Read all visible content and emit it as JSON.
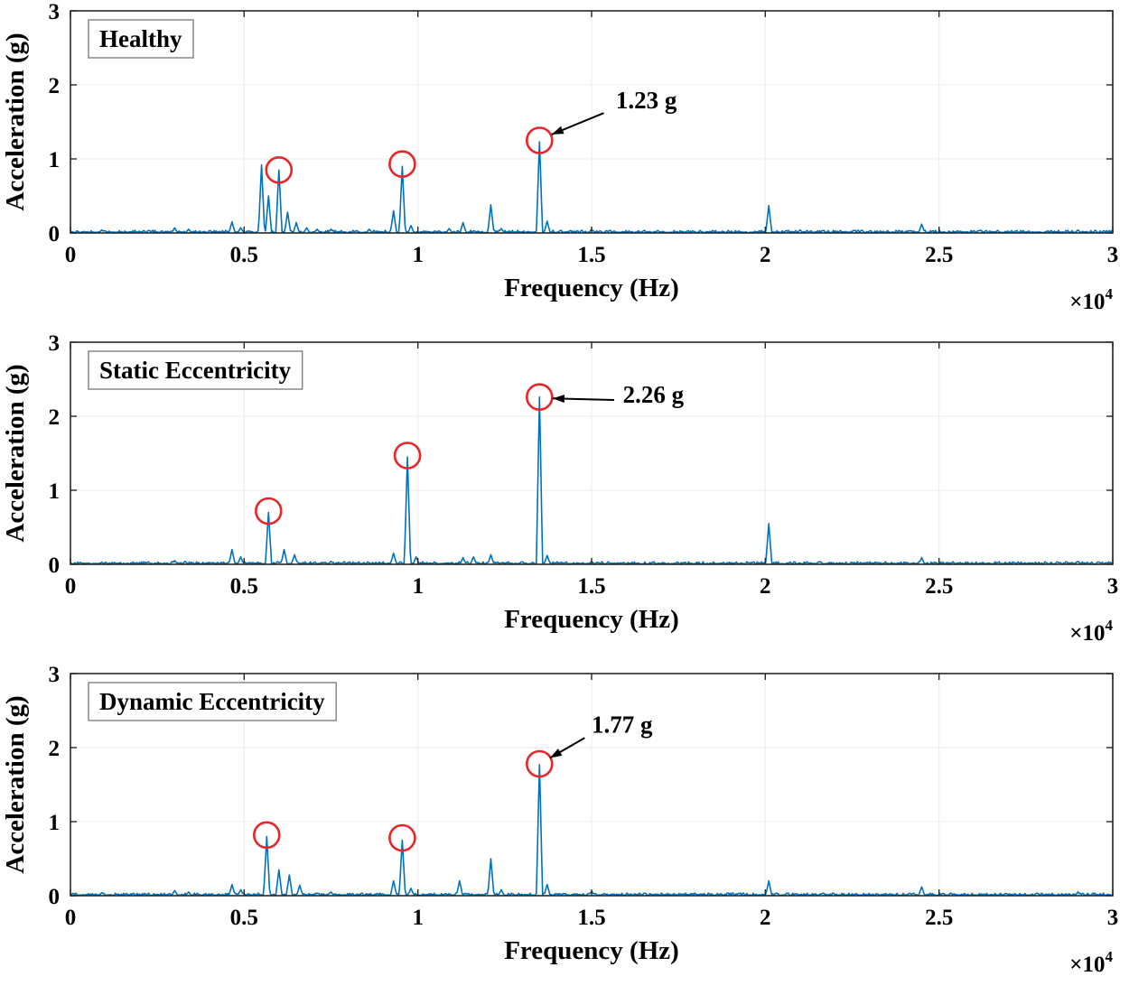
{
  "style": {
    "line_color": "#0072BD",
    "circle_color": "#E8262A",
    "axis_color": "#262626",
    "grid_color": "#ececec",
    "annotation_color": "#000000",
    "label_box_border": "#808080",
    "label_box_fill": "#ffffff",
    "background": "#ffffff"
  },
  "chart_data": [
    {
      "type": "line",
      "label": "Healthy",
      "xlabel": "Frequency (Hz)",
      "ylabel": "Acceleration (g)",
      "x_multiplier": {
        "base": "×10",
        "exponent": "4"
      },
      "xlim": [
        0,
        30000
      ],
      "ylim": [
        0,
        3
      ],
      "xticks": [
        0,
        5000,
        10000,
        15000,
        20000,
        25000,
        30000
      ],
      "xtick_labels": [
        "0",
        "0.5",
        "1",
        "1.5",
        "2",
        "2.5",
        "3"
      ],
      "yticks": [
        0,
        1,
        2,
        3
      ],
      "ytick_labels": [
        "0",
        "1",
        "2",
        "3"
      ],
      "peaks": [
        [
          900,
          0.04
        ],
        [
          3000,
          0.07
        ],
        [
          3400,
          0.05
        ],
        [
          4650,
          0.15
        ],
        [
          4900,
          0.07
        ],
        [
          5500,
          0.92
        ],
        [
          5700,
          0.5
        ],
        [
          6000,
          0.85
        ],
        [
          6250,
          0.28
        ],
        [
          6500,
          0.14
        ],
        [
          6800,
          0.07
        ],
        [
          7100,
          0.05
        ],
        [
          7500,
          0.05
        ],
        [
          8600,
          0.05
        ],
        [
          9300,
          0.3
        ],
        [
          9550,
          0.9
        ],
        [
          9800,
          0.1
        ],
        [
          10900,
          0.06
        ],
        [
          11300,
          0.14
        ],
        [
          12100,
          0.38
        ],
        [
          12400,
          0.06
        ],
        [
          13500,
          1.23
        ],
        [
          13720,
          0.16
        ],
        [
          15000,
          0.05
        ],
        [
          16500,
          0.03
        ],
        [
          20100,
          0.37
        ],
        [
          21000,
          0.04
        ],
        [
          24500,
          0.12
        ],
        [
          26000,
          0.03
        ],
        [
          29000,
          0.04
        ]
      ],
      "circled_peaks": [
        [
          6000,
          0.85
        ],
        [
          9550,
          0.93
        ],
        [
          13500,
          1.25
        ]
      ],
      "annotation": {
        "text": "1.23 g",
        "value_g": 1.23,
        "peak_x": 13500,
        "text_x": 15700,
        "text_y": 1.68,
        "arrow_from": [
          15350,
          1.62
        ],
        "arrow_to": [
          13850,
          1.33
        ]
      }
    },
    {
      "type": "line",
      "label": "Static Eccentricity",
      "xlabel": "Frequency (Hz)",
      "ylabel": "Acceleration (g)",
      "x_multiplier": {
        "base": "×10",
        "exponent": "4"
      },
      "xlim": [
        0,
        30000
      ],
      "ylim": [
        0,
        3
      ],
      "xticks": [
        0,
        5000,
        10000,
        15000,
        20000,
        25000,
        30000
      ],
      "xtick_labels": [
        "0",
        "0.5",
        "1",
        "1.5",
        "2",
        "2.5",
        "3"
      ],
      "yticks": [
        0,
        1,
        2,
        3
      ],
      "ytick_labels": [
        "0",
        "1",
        "2",
        "3"
      ],
      "peaks": [
        [
          900,
          0.03
        ],
        [
          3000,
          0.05
        ],
        [
          3300,
          0.04
        ],
        [
          4650,
          0.2
        ],
        [
          4900,
          0.1
        ],
        [
          5700,
          0.7
        ],
        [
          6150,
          0.2
        ],
        [
          6450,
          0.13
        ],
        [
          7500,
          0.04
        ],
        [
          9300,
          0.15
        ],
        [
          9700,
          1.45
        ],
        [
          9950,
          0.1
        ],
        [
          11300,
          0.09
        ],
        [
          11600,
          0.1
        ],
        [
          12100,
          0.13
        ],
        [
          13500,
          2.26
        ],
        [
          13720,
          0.12
        ],
        [
          15000,
          0.04
        ],
        [
          20100,
          0.55
        ],
        [
          24500,
          0.09
        ],
        [
          29000,
          0.04
        ]
      ],
      "circled_peaks": [
        [
          5700,
          0.72
        ],
        [
          9700,
          1.47
        ],
        [
          13500,
          2.26
        ]
      ],
      "annotation": {
        "text": "2.26 g",
        "value_g": 2.26,
        "peak_x": 13500,
        "text_x": 15900,
        "text_y": 2.18,
        "arrow_from": [
          15650,
          2.22
        ],
        "arrow_to": [
          13880,
          2.24
        ]
      }
    },
    {
      "type": "line",
      "label": "Dynamic Eccentricity",
      "xlabel": "Frequency (Hz)",
      "ylabel": "Acceleration (g)",
      "x_multiplier": {
        "base": "×10",
        "exponent": "4"
      },
      "xlim": [
        0,
        30000
      ],
      "ylim": [
        0,
        3
      ],
      "xticks": [
        0,
        5000,
        10000,
        15000,
        20000,
        25000,
        30000
      ],
      "xtick_labels": [
        "0",
        "0.5",
        "1",
        "1.5",
        "2",
        "2.5",
        "3"
      ],
      "yticks": [
        0,
        1,
        2,
        3
      ],
      "ytick_labels": [
        "0",
        "1",
        "2",
        "3"
      ],
      "peaks": [
        [
          900,
          0.04
        ],
        [
          3000,
          0.07
        ],
        [
          3400,
          0.05
        ],
        [
          4650,
          0.15
        ],
        [
          4900,
          0.08
        ],
        [
          5650,
          0.8
        ],
        [
          6000,
          0.35
        ],
        [
          6300,
          0.28
        ],
        [
          6600,
          0.14
        ],
        [
          7500,
          0.05
        ],
        [
          9300,
          0.2
        ],
        [
          9550,
          0.75
        ],
        [
          9800,
          0.1
        ],
        [
          11200,
          0.2
        ],
        [
          12100,
          0.5
        ],
        [
          12400,
          0.08
        ],
        [
          13500,
          1.77
        ],
        [
          13720,
          0.15
        ],
        [
          15000,
          0.06
        ],
        [
          20100,
          0.2
        ],
        [
          24500,
          0.12
        ],
        [
          29000,
          0.05
        ]
      ],
      "circled_peaks": [
        [
          5650,
          0.82
        ],
        [
          9550,
          0.78
        ],
        [
          13500,
          1.78
        ]
      ],
      "annotation": {
        "text": "1.77 g",
        "value_g": 1.77,
        "peak_x": 13500,
        "text_x": 15000,
        "text_y": 2.2,
        "arrow_from": [
          14800,
          2.13
        ],
        "arrow_to": [
          13800,
          1.86
        ]
      }
    }
  ]
}
